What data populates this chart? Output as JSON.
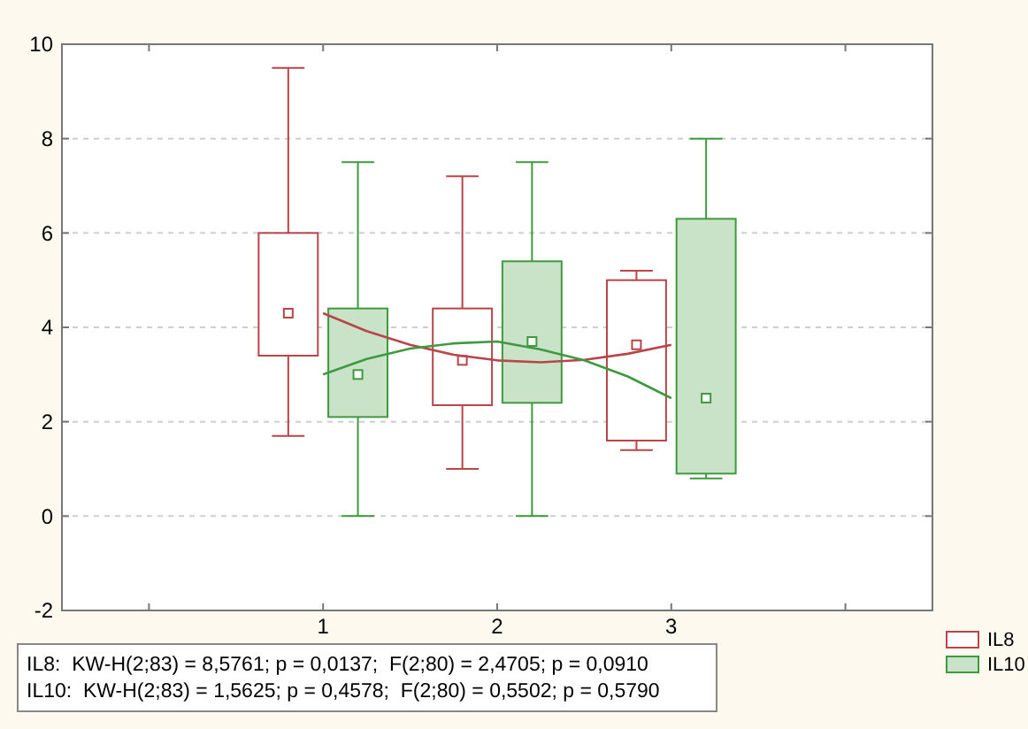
{
  "chart_data": {
    "type": "box",
    "xlim": [
      -0.5,
      4.5
    ],
    "xticks": [
      {
        "value": 0,
        "label": null
      },
      1,
      2,
      3,
      {
        "value": 4,
        "label": null
      }
    ],
    "ylim": [
      -2,
      10
    ],
    "yticks": [
      -2,
      0,
      2,
      4,
      6,
      8,
      10
    ],
    "grid": "y",
    "legend": "bottom right",
    "series": [
      {
        "name": "IL8",
        "color": "#b8454a",
        "x": [
          1,
          2,
          3
        ],
        "boxes": [
          {
            "low": 1.7,
            "q1": 3.4,
            "median": 4.3,
            "q3": 6.0,
            "high": 9.5
          },
          {
            "low": 1.0,
            "q1": 2.35,
            "median": 3.3,
            "q3": 4.4,
            "high": 7.2
          },
          {
            "low": 1.4,
            "q1": 1.6,
            "median": 3.63,
            "q3": 5.0,
            "high": 5.2
          }
        ]
      },
      {
        "name": "IL10",
        "color": "#3f9a3f",
        "x": [
          1,
          2,
          3
        ],
        "boxes": [
          {
            "low": 0,
            "q1": 2.1,
            "median": 3.0,
            "q3": 4.4,
            "high": 7.5
          },
          {
            "low": 0,
            "q1": 2.4,
            "median": 3.7,
            "q3": 5.4,
            "high": 7.5
          },
          {
            "low": 0.8,
            "q1": 0.9,
            "median": 2.5,
            "q3": 6.3,
            "high": 8.0
          }
        ]
      },
      {
        "type": "line",
        "color": "#b8454a",
        "x": [
          1,
          1.25,
          1.5,
          1.75,
          2,
          2.25,
          2.5,
          2.75,
          3
        ],
        "values": [
          4.3,
          3.92,
          3.63,
          3.42,
          3.3,
          3.26,
          3.31,
          3.44,
          3.63
        ]
      },
      {
        "type": "line",
        "color": "#3f9a3f",
        "x": [
          1,
          1.25,
          1.5,
          1.75,
          2,
          2.25,
          2.5,
          2.75,
          3
        ],
        "values": [
          3.0,
          3.33,
          3.55,
          3.66,
          3.7,
          3.53,
          3.3,
          2.96,
          2.5
        ]
      }
    ],
    "annotations": [
      "IL8:  KW-H(2;83) = 8,5761; p = 0,0137;  F(2;80) = 2,4705; p = 0,0910",
      "IL10:  KW-H(2;83) = 1,5625; p = 0,4578;  F(2;80) = 0,5502; p = 0,5790"
    ]
  }
}
